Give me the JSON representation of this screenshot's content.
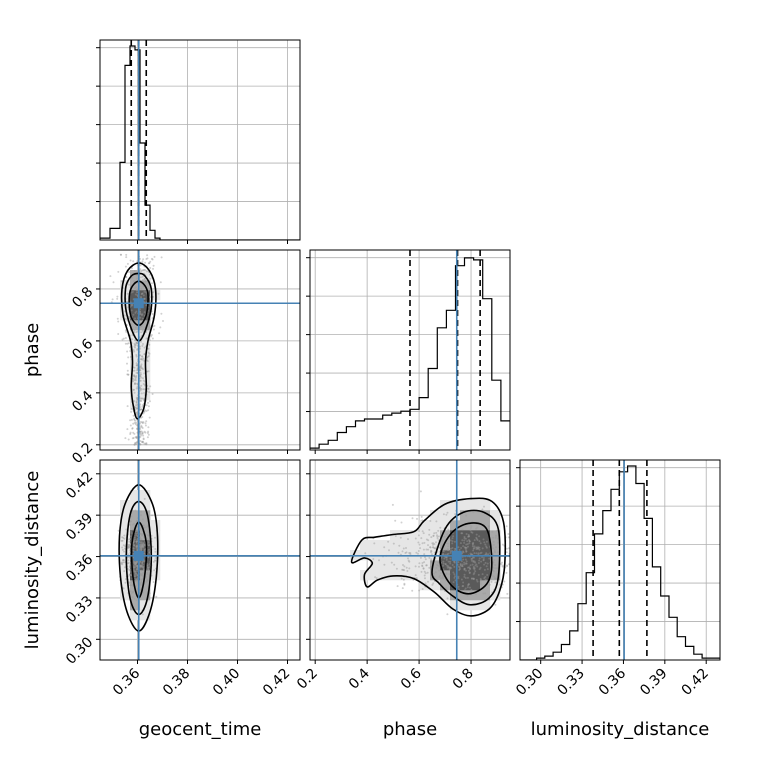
{
  "chart_data": {
    "type": "corner",
    "parameters": [
      {
        "id": "geocent_time",
        "label": "geocent_time",
        "range": [
          0.345,
          0.425
        ],
        "ticks": [
          "0.36",
          "0.38",
          "0.40",
          "0.42"
        ],
        "tick_values": [
          0.36,
          0.38,
          0.4,
          0.42
        ],
        "truth": 0.3605,
        "quantiles": [
          0.3575,
          0.3605,
          0.3635
        ]
      },
      {
        "id": "phase",
        "label": "phase",
        "range": [
          0.18,
          0.95
        ],
        "ticks": [
          "0.2",
          "0.4",
          "0.6",
          "0.8"
        ],
        "tick_values": [
          0.2,
          0.4,
          0.6,
          0.8
        ],
        "truth": 0.745,
        "quantiles": [
          0.565,
          0.748,
          0.835
        ]
      },
      {
        "id": "luminosity_distance",
        "label": "luminosity_distance",
        "range": [
          0.285,
          0.43
        ],
        "ticks": [
          "0.30",
          "0.33",
          "0.36",
          "0.39",
          "0.42"
        ],
        "tick_values": [
          0.3,
          0.33,
          0.36,
          0.39,
          0.42
        ],
        "truth": 0.3605,
        "quantiles": [
          0.338,
          0.357,
          0.377
        ]
      }
    ],
    "histograms": {
      "geocent_time": {
        "bins": [
          0.345,
          0.349,
          0.353,
          0.355,
          0.357,
          0.359,
          0.361,
          0.363,
          0.365,
          0.367,
          0.369,
          0.373,
          0.425
        ],
        "counts": [
          0.01,
          0.06,
          0.4,
          0.9,
          1.0,
          0.98,
          0.5,
          0.18,
          0.05,
          0.01,
          0.0,
          0.0
        ]
      },
      "phase": {
        "bins": [
          0.18,
          0.215,
          0.25,
          0.285,
          0.32,
          0.355,
          0.39,
          0.425,
          0.46,
          0.495,
          0.53,
          0.565,
          0.6,
          0.635,
          0.67,
          0.705,
          0.74,
          0.775,
          0.81,
          0.845,
          0.88,
          0.915,
          0.95
        ],
        "counts": [
          0.01,
          0.03,
          0.05,
          0.09,
          0.12,
          0.15,
          0.16,
          0.16,
          0.18,
          0.19,
          0.2,
          0.21,
          0.27,
          0.42,
          0.63,
          0.72,
          0.95,
          0.99,
          0.98,
          0.78,
          0.36,
          0.15
        ]
      },
      "luminosity_distance": {
        "bins": [
          0.285,
          0.291,
          0.297,
          0.303,
          0.309,
          0.315,
          0.321,
          0.327,
          0.333,
          0.339,
          0.345,
          0.351,
          0.357,
          0.363,
          0.369,
          0.375,
          0.381,
          0.387,
          0.393,
          0.399,
          0.405,
          0.411,
          0.417,
          0.423,
          0.43
        ],
        "counts": [
          0.0,
          0.0,
          0.01,
          0.02,
          0.04,
          0.08,
          0.15,
          0.29,
          0.45,
          0.65,
          0.77,
          0.88,
          0.97,
          1.0,
          0.91,
          0.73,
          0.48,
          0.33,
          0.22,
          0.12,
          0.07,
          0.03,
          0.01,
          0.01
        ]
      }
    },
    "joint_contours": {
      "geocent_time__phase": {
        "levels": [
          [
            [
              0.36,
              0.3
            ],
            [
              0.3625,
              0.34
            ],
            [
              0.3635,
              0.42
            ],
            [
              0.3632,
              0.52
            ],
            [
              0.3642,
              0.6
            ],
            [
              0.3668,
              0.7
            ],
            [
              0.3672,
              0.8
            ],
            [
              0.3648,
              0.87
            ],
            [
              0.3605,
              0.9
            ],
            [
              0.356,
              0.87
            ],
            [
              0.3538,
              0.8
            ],
            [
              0.3542,
              0.7
            ],
            [
              0.3572,
              0.6
            ],
            [
              0.358,
              0.52
            ],
            [
              0.3575,
              0.42
            ],
            [
              0.3585,
              0.34
            ]
          ],
          [
            [
              0.3605,
              0.6
            ],
            [
              0.365,
              0.7
            ],
            [
              0.3655,
              0.8
            ],
            [
              0.363,
              0.85
            ],
            [
              0.3605,
              0.86
            ],
            [
              0.3575,
              0.85
            ],
            [
              0.3552,
              0.8
            ],
            [
              0.3558,
              0.7
            ]
          ],
          [
            [
              0.3605,
              0.66
            ],
            [
              0.3635,
              0.7
            ],
            [
              0.364,
              0.79
            ],
            [
              0.3605,
              0.83
            ],
            [
              0.357,
              0.79
            ],
            [
              0.3572,
              0.7
            ]
          ]
        ],
        "peak": [
          0.3605,
          0.75
        ]
      },
      "geocent_time__luminosity_distance": {
        "levels": [
          [
            [
              0.3605,
              0.306
            ],
            [
              0.365,
              0.32
            ],
            [
              0.3675,
              0.345
            ],
            [
              0.368,
              0.375
            ],
            [
              0.366,
              0.398
            ],
            [
              0.3605,
              0.412
            ],
            [
              0.355,
              0.398
            ],
            [
              0.3528,
              0.375
            ],
            [
              0.3532,
              0.345
            ],
            [
              0.3558,
              0.32
            ]
          ],
          [
            [
              0.3605,
              0.318
            ],
            [
              0.364,
              0.33
            ],
            [
              0.3655,
              0.36
            ],
            [
              0.364,
              0.39
            ],
            [
              0.3605,
              0.4
            ],
            [
              0.357,
              0.39
            ],
            [
              0.3555,
              0.36
            ],
            [
              0.357,
              0.33
            ]
          ],
          [
            [
              0.3605,
              0.33
            ],
            [
              0.3628,
              0.345
            ],
            [
              0.3635,
              0.37
            ],
            [
              0.3605,
              0.385
            ],
            [
              0.3578,
              0.37
            ],
            [
              0.3582,
              0.345
            ]
          ]
        ],
        "peak": [
          0.3605,
          0.36
        ]
      },
      "phase__luminosity_distance": {
        "levels": [
          [
            [
              0.34,
              0.356
            ],
            [
              0.38,
              0.372
            ],
            [
              0.43,
              0.374
            ],
            [
              0.5,
              0.376
            ],
            [
              0.58,
              0.378
            ],
            [
              0.62,
              0.386
            ],
            [
              0.7,
              0.398
            ],
            [
              0.8,
              0.402
            ],
            [
              0.88,
              0.4
            ],
            [
              0.925,
              0.385
            ],
            [
              0.93,
              0.355
            ],
            [
              0.91,
              0.335
            ],
            [
              0.87,
              0.322
            ],
            [
              0.8,
              0.317
            ],
            [
              0.73,
              0.322
            ],
            [
              0.66,
              0.334
            ],
            [
              0.58,
              0.344
            ],
            [
              0.5,
              0.346
            ],
            [
              0.44,
              0.343
            ],
            [
              0.4,
              0.338
            ],
            [
              0.39,
              0.347
            ],
            [
              0.42,
              0.355
            ],
            [
              0.39,
              0.359
            ]
          ],
          [
            [
              0.65,
              0.35
            ],
            [
              0.7,
              0.38
            ],
            [
              0.77,
              0.392
            ],
            [
              0.85,
              0.392
            ],
            [
              0.905,
              0.38
            ],
            [
              0.905,
              0.345
            ],
            [
              0.87,
              0.33
            ],
            [
              0.8,
              0.325
            ],
            [
              0.74,
              0.33
            ],
            [
              0.68,
              0.34
            ]
          ],
          [
            [
              0.68,
              0.358
            ],
            [
              0.72,
              0.376
            ],
            [
              0.79,
              0.384
            ],
            [
              0.86,
              0.38
            ],
            [
              0.88,
              0.355
            ],
            [
              0.86,
              0.34
            ],
            [
              0.79,
              0.333
            ],
            [
              0.72,
              0.34
            ]
          ]
        ],
        "peak": [
          0.75,
          0.36
        ]
      }
    },
    "colors": {
      "truth": "#4682b4",
      "contour": "#000000",
      "grid": "#b0b0b0",
      "samples": "#9a9a9a",
      "density_dark": "#2a2a2a",
      "density_light": "#d8d8d8"
    },
    "grid": true
  }
}
